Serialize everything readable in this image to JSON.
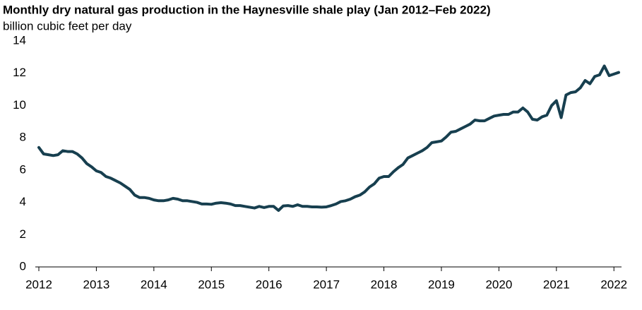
{
  "chart_data": {
    "type": "line",
    "title": "Monthly dry natural gas production in the Haynesville shale play (Jan 2012–Feb 2022)",
    "subtitle": "billion cubic feet per day",
    "x": [
      2012,
      2012.083,
      2012.167,
      2012.25,
      2012.333,
      2012.417,
      2012.5,
      2012.583,
      2012.667,
      2012.75,
      2012.833,
      2012.917,
      2013,
      2013.083,
      2013.167,
      2013.25,
      2013.333,
      2013.417,
      2013.5,
      2013.583,
      2013.667,
      2013.75,
      2013.833,
      2013.917,
      2014,
      2014.083,
      2014.167,
      2014.25,
      2014.333,
      2014.417,
      2014.5,
      2014.583,
      2014.667,
      2014.75,
      2014.833,
      2014.917,
      2015,
      2015.083,
      2015.167,
      2015.25,
      2015.333,
      2015.417,
      2015.5,
      2015.583,
      2015.667,
      2015.75,
      2015.833,
      2015.917,
      2016,
      2016.083,
      2016.167,
      2016.25,
      2016.333,
      2016.417,
      2016.5,
      2016.583,
      2016.667,
      2016.75,
      2016.833,
      2016.917,
      2017,
      2017.083,
      2017.167,
      2017.25,
      2017.333,
      2017.417,
      2017.5,
      2017.583,
      2017.667,
      2017.75,
      2017.833,
      2017.917,
      2018,
      2018.083,
      2018.167,
      2018.25,
      2018.333,
      2018.417,
      2018.5,
      2018.583,
      2018.667,
      2018.75,
      2018.833,
      2018.917,
      2019,
      2019.083,
      2019.167,
      2019.25,
      2019.333,
      2019.417,
      2019.5,
      2019.583,
      2019.667,
      2019.75,
      2019.833,
      2019.917,
      2020,
      2020.083,
      2020.167,
      2020.25,
      2020.333,
      2020.417,
      2020.5,
      2020.583,
      2020.667,
      2020.75,
      2020.833,
      2020.917,
      2021,
      2021.083,
      2021.167,
      2021.25,
      2021.333,
      2021.417,
      2021.5,
      2021.583,
      2021.667,
      2021.75,
      2021.833,
      2021.917,
      2022,
      2022.083
    ],
    "series": [
      {
        "name": "Haynesville",
        "color": "#173f4f",
        "values": [
          7.4,
          7.0,
          6.95,
          6.9,
          6.95,
          7.2,
          7.15,
          7.15,
          7.0,
          6.75,
          6.4,
          6.2,
          5.95,
          5.85,
          5.6,
          5.5,
          5.35,
          5.2,
          5.0,
          4.8,
          4.45,
          4.3,
          4.3,
          4.25,
          4.15,
          4.1,
          4.1,
          4.15,
          4.25,
          4.2,
          4.1,
          4.1,
          4.05,
          4.0,
          3.9,
          3.9,
          3.88,
          3.95,
          3.98,
          3.95,
          3.9,
          3.8,
          3.8,
          3.75,
          3.7,
          3.65,
          3.75,
          3.68,
          3.75,
          3.75,
          3.5,
          3.78,
          3.8,
          3.75,
          3.85,
          3.75,
          3.75,
          3.72,
          3.72,
          3.7,
          3.72,
          3.8,
          3.9,
          4.05,
          4.1,
          4.2,
          4.35,
          4.45,
          4.65,
          4.95,
          5.15,
          5.5,
          5.6,
          5.6,
          5.9,
          6.15,
          6.35,
          6.75,
          6.9,
          7.05,
          7.2,
          7.4,
          7.7,
          7.75,
          7.8,
          8.05,
          8.35,
          8.4,
          8.55,
          8.7,
          8.85,
          9.1,
          9.05,
          9.05,
          9.2,
          9.35,
          9.4,
          9.45,
          9.45,
          9.6,
          9.6,
          9.85,
          9.6,
          9.15,
          9.1,
          9.3,
          9.4,
          10.0,
          10.3,
          9.25,
          10.65,
          10.8,
          10.85,
          11.1,
          11.55,
          11.35,
          11.8,
          11.9,
          12.45,
          11.85,
          11.95,
          12.05
        ]
      }
    ],
    "xlim": [
      2012,
      2022.083
    ],
    "xticks": [
      2012,
      2013,
      2014,
      2015,
      2016,
      2017,
      2018,
      2019,
      2020,
      2021,
      2022
    ],
    "ylim": [
      0,
      14
    ],
    "yticks": [
      0,
      2,
      4,
      6,
      8,
      10,
      12,
      14
    ],
    "grid": false
  }
}
